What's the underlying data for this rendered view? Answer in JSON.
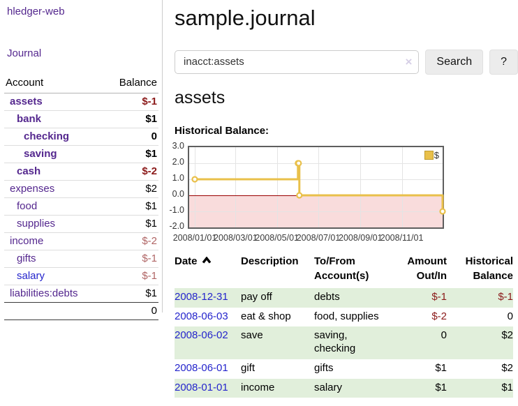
{
  "sidebar": {
    "app_title": "hledger-web",
    "journal_label": "Journal",
    "accounts_table": {
      "headers": {
        "account": "Account",
        "balance": "Balance"
      },
      "rows": [
        {
          "name": "assets",
          "balance": "$-1",
          "depth": 1,
          "bold": true,
          "neg": true
        },
        {
          "name": "bank",
          "balance": "$1",
          "depth": 2,
          "bold": true,
          "neg": false
        },
        {
          "name": "checking",
          "balance": "0",
          "depth": 3,
          "bold": true,
          "neg": false
        },
        {
          "name": "saving",
          "balance": "$1",
          "depth": 3,
          "bold": true,
          "neg": false
        },
        {
          "name": "cash",
          "balance": "$-2",
          "depth": 2,
          "bold": true,
          "neg": true
        },
        {
          "name": "expenses",
          "balance": "$2",
          "depth": 1,
          "bold": false,
          "neg": false
        },
        {
          "name": "food",
          "balance": "$1",
          "depth": 2,
          "bold": false,
          "neg": false
        },
        {
          "name": "supplies",
          "balance": "$1",
          "depth": 2,
          "bold": false,
          "neg": false
        },
        {
          "name": "income",
          "balance": "$-2",
          "depth": 1,
          "bold": false,
          "neg": true
        },
        {
          "name": "gifts",
          "balance": "$-1",
          "depth": 2,
          "bold": false,
          "neg": true
        },
        {
          "name": "salary",
          "balance": "$-1",
          "depth": 2,
          "bold": false,
          "neg": true,
          "blue": true
        },
        {
          "name": "liabilities:debts",
          "balance": "$1",
          "depth": 1,
          "bold": false,
          "neg": false
        }
      ],
      "total": "0"
    }
  },
  "main": {
    "title": "sample.journal",
    "search": {
      "value": "inacct:assets",
      "clear_icon": "×",
      "search_label": "Search",
      "help_label": "?"
    },
    "account_heading": "assets",
    "chart_label": "Historical Balance:"
  },
  "chart_data": {
    "type": "line",
    "title": "Historical Balance",
    "step": true,
    "series": [
      {
        "name": "$",
        "color": "#e9c04a",
        "points": [
          [
            "2008-01-01",
            1
          ],
          [
            "2008-06-01",
            2
          ],
          [
            "2008-06-02",
            2
          ],
          [
            "2008-06-03",
            0
          ],
          [
            "2008-12-31",
            -1
          ]
        ]
      }
    ],
    "xlim": [
      "2008-01-01",
      "2008-12-31"
    ],
    "ylim": [
      -2,
      3
    ],
    "y_ticks": [
      3.0,
      2.0,
      1.0,
      0.0,
      -1.0,
      -2.0
    ],
    "x_ticks": [
      "2008/01/01",
      "2008/03/01",
      "2008/05/01",
      "2008/07/01",
      "2008/09/01",
      "2008/11/01"
    ],
    "legend_position": "top-right",
    "grid": true,
    "negative_region_color": "#f9dcdc",
    "zero_line_color": "#990000"
  },
  "register_table": {
    "headers": {
      "date": "Date",
      "description": "Description",
      "accounts": "To/From Account(s)",
      "amount": "Amount Out/In",
      "balance": "Historical Balance"
    },
    "sort": {
      "column": "date",
      "direction": "ascending"
    },
    "rows": [
      {
        "date": "2008-12-31",
        "description": "pay off",
        "accounts": "debts",
        "amount": "$-1",
        "amount_neg": true,
        "balance": "$-1",
        "balance_neg": true
      },
      {
        "date": "2008-06-03",
        "description": "eat & shop",
        "accounts": "food, supplies",
        "amount": "$-2",
        "amount_neg": true,
        "balance": "0",
        "balance_neg": false
      },
      {
        "date": "2008-06-02",
        "description": "save",
        "accounts": "saving, checking",
        "amount": "0",
        "amount_neg": false,
        "balance": "$2",
        "balance_neg": false
      },
      {
        "date": "2008-06-01",
        "description": "gift",
        "accounts": "gifts",
        "amount": "$1",
        "amount_neg": false,
        "balance": "$2",
        "balance_neg": false
      },
      {
        "date": "2008-01-01",
        "description": "income",
        "accounts": "salary",
        "amount": "$1",
        "amount_neg": false,
        "balance": "$1",
        "balance_neg": false
      }
    ]
  },
  "colors": {
    "accent_purple": "#54278e",
    "link_blue": "#2424cc",
    "negative_strong": "#8b1a1a",
    "negative_muted": "#b06565",
    "row_stripe_green": "#e1efdb",
    "chart_line_gold": "#e9c04a",
    "chart_negative_bg": "#f9dcdc",
    "chart_zero_line": "#990000",
    "chart_border": "#5e5e5e"
  }
}
